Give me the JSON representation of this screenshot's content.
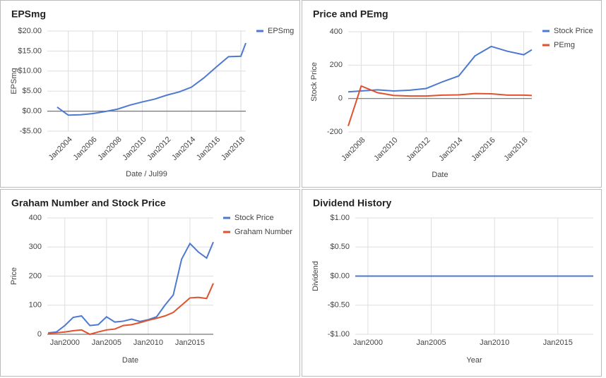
{
  "chart_data": [
    {
      "type": "line",
      "title": "EPSmg",
      "x_label": "Date / Jul99",
      "y_label": "EPSmg",
      "legend": "top-right",
      "grid": true,
      "x": [
        2003.1,
        2004,
        2005,
        2006,
        2007,
        2008,
        2009,
        2010,
        2011,
        2012,
        2013,
        2014,
        2015,
        2016,
        2017,
        2018,
        2018.4
      ],
      "series": [
        {
          "name": "EPSmg",
          "color": "#4e79d1",
          "values": [
            1,
            -1,
            -0.9,
            -0.6,
            -0.1,
            0.5,
            1.5,
            2.3,
            3.0,
            4.0,
            4.8,
            6.0,
            8.3,
            11.0,
            13.6,
            13.7,
            17.0
          ]
        }
      ],
      "xlim": [
        2002.3,
        2018.4
      ],
      "xticks": [
        {
          "value": 2004,
          "label": "Jan2004"
        },
        {
          "value": 2006,
          "label": "Jan2006"
        },
        {
          "value": 2008,
          "label": "Jan2008"
        },
        {
          "value": 2010,
          "label": "Jan2010"
        },
        {
          "value": 2012,
          "label": "Jan2012"
        },
        {
          "value": 2014,
          "label": "Jan2014"
        },
        {
          "value": 2016,
          "label": "Jan2016"
        },
        {
          "value": 2018,
          "label": "Jan2018"
        }
      ],
      "ylim": [
        -5,
        20
      ],
      "yticks": [
        {
          "value": -5,
          "label": "-$5.00"
        },
        {
          "value": 0,
          "label": "$0.00"
        },
        {
          "value": 5,
          "label": "$5.00"
        },
        {
          "value": 10,
          "label": "$10.00"
        },
        {
          "value": 15,
          "label": "$15.00"
        },
        {
          "value": 20,
          "label": "$20.00"
        }
      ]
    },
    {
      "type": "line",
      "title": "Price and PEmg",
      "x_label": "Date",
      "y_label": "Stock Price",
      "legend": "top-right",
      "grid": true,
      "x": [
        2007.2,
        2008,
        2009,
        2010,
        2011,
        2012,
        2013,
        2014,
        2015,
        2016,
        2017,
        2018,
        2018.5
      ],
      "series": [
        {
          "name": "Stock Price",
          "color": "#4e79d1",
          "values": [
            40,
            45,
            52,
            45,
            50,
            60,
            100,
            135,
            255,
            312,
            283,
            262,
            292
          ]
        },
        {
          "name": "PEmg",
          "color": "#e0522e",
          "values": [
            -165,
            75,
            35,
            18,
            15,
            15,
            20,
            22,
            30,
            28,
            20,
            20,
            18
          ]
        }
      ],
      "xlim": [
        2007.2,
        2018.5
      ],
      "xticks": [
        {
          "value": 2008,
          "label": "Jan2008"
        },
        {
          "value": 2010,
          "label": "Jan2010"
        },
        {
          "value": 2012,
          "label": "Jan2012"
        },
        {
          "value": 2014,
          "label": "Jan2014"
        },
        {
          "value": 2016,
          "label": "Jan2016"
        },
        {
          "value": 2018,
          "label": "Jan2018"
        }
      ],
      "ylim": [
        -200,
        400
      ],
      "yticks": [
        -200,
        0,
        200,
        400
      ]
    },
    {
      "type": "line",
      "title": "Graham Number and Stock Price",
      "x_label": "Date",
      "y_label": "Price",
      "legend": "top-right",
      "grid": true,
      "x": [
        1998,
        1999,
        2000,
        2001,
        2002,
        2003,
        2004,
        2005,
        2006,
        2007,
        2008,
        2009,
        2010,
        2011,
        2012,
        2013,
        2014,
        2015,
        2016,
        2017,
        2017.8
      ],
      "series": [
        {
          "name": "Stock Price",
          "color": "#4e79d1",
          "values": [
            5,
            8,
            30,
            58,
            63,
            30,
            33,
            60,
            42,
            45,
            52,
            44,
            50,
            60,
            100,
            135,
            258,
            312,
            283,
            262,
            317
          ]
        },
        {
          "name": "Graham Number",
          "color": "#e0522e",
          "values": [
            3,
            5,
            8,
            12,
            15,
            0,
            8,
            15,
            18,
            30,
            33,
            40,
            48,
            55,
            63,
            75,
            100,
            125,
            127,
            123,
            175
          ]
        }
      ],
      "xlim": [
        1997.9,
        2017.8
      ],
      "xticks": [
        {
          "value": 2000,
          "label": "Jan2000"
        },
        {
          "value": 2005,
          "label": "Jan2005"
        },
        {
          "value": 2010,
          "label": "Jan2010"
        },
        {
          "value": 2015,
          "label": "Jan2015"
        }
      ],
      "ylim": [
        0,
        400
      ],
      "yticks": [
        0,
        100,
        200,
        300,
        400
      ]
    },
    {
      "type": "line",
      "title": "Dividend History",
      "x_label": "Year",
      "y_label": "Dividend",
      "grid": true,
      "x": [
        1999,
        2017.8
      ],
      "series": [
        {
          "color": "#4e79d1",
          "values": [
            0,
            0
          ]
        }
      ],
      "xlim": [
        1999,
        2017.8
      ],
      "xticks": [
        {
          "value": 2000,
          "label": "Jan2000"
        },
        {
          "value": 2005,
          "label": "Jan2005"
        },
        {
          "value": 2010,
          "label": "Jan2010"
        },
        {
          "value": 2015,
          "label": "Jan2015"
        }
      ],
      "ylim": [
        -1,
        1
      ],
      "yticks": [
        {
          "value": -1,
          "label": "-$1.00"
        },
        {
          "value": -0.5,
          "label": "-$0.50"
        },
        {
          "value": 0,
          "label": "$0.00"
        },
        {
          "value": 0.5,
          "label": "$0.50"
        },
        {
          "value": 1,
          "label": "$1.00"
        }
      ]
    }
  ]
}
